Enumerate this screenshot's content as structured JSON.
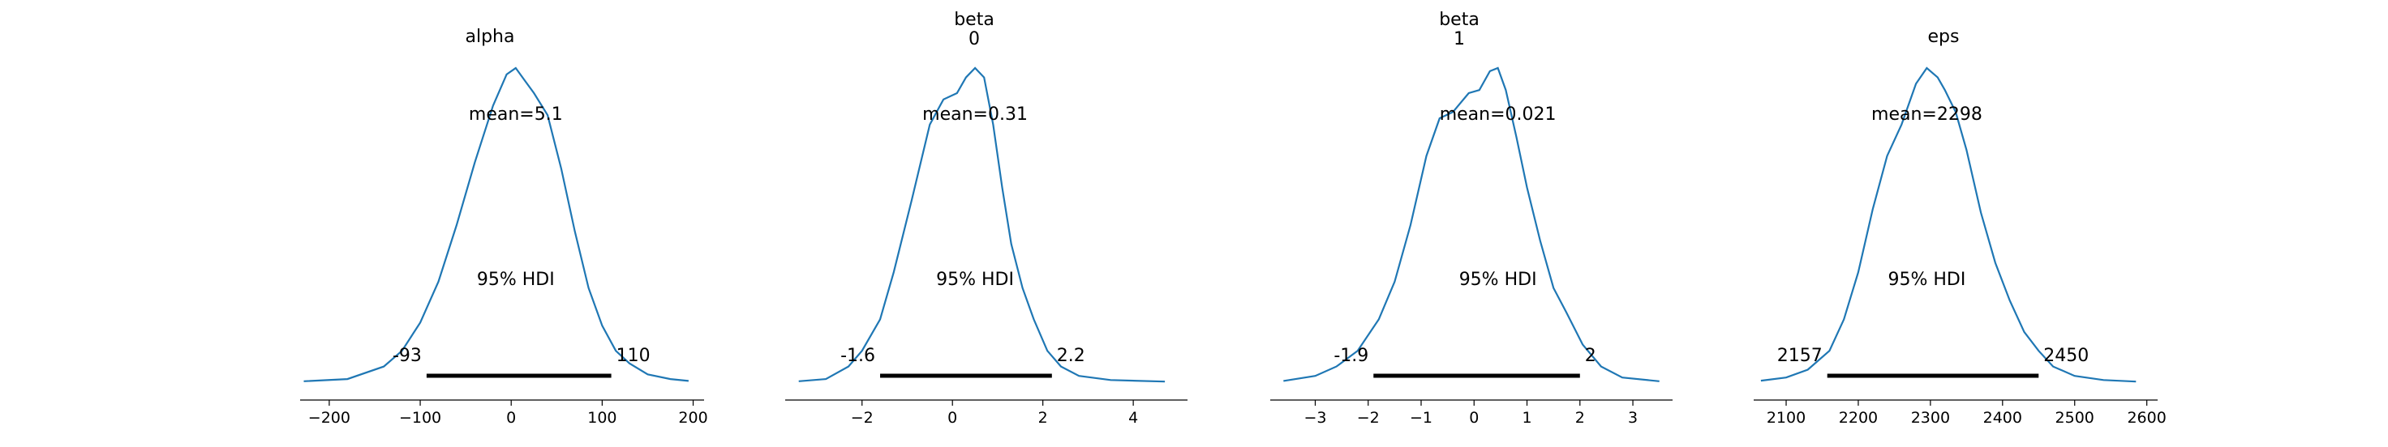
{
  "figure": {
    "line_color": "#1f77b4",
    "hdi_color": "#000000",
    "axis_color": "#000000"
  },
  "chart_data": [
    {
      "type": "line",
      "title_lines": [
        "alpha"
      ],
      "mean_label": "mean=5.1",
      "hdi_label": "95% HDI",
      "hdi_low": -93,
      "hdi_high": 110,
      "hdi_low_label": "-93",
      "hdi_high_label": "110",
      "xlim": [
        -232,
        212
      ],
      "xticks": [
        -200,
        -100,
        0,
        100,
        200
      ],
      "xtick_labels": [
        "−200",
        "−100",
        "0",
        "100",
        "200"
      ],
      "density": [
        [
          -228,
          0.003
        ],
        [
          -180,
          0.01
        ],
        [
          -140,
          0.05
        ],
        [
          -120,
          0.1
        ],
        [
          -100,
          0.19
        ],
        [
          -80,
          0.32
        ],
        [
          -60,
          0.5
        ],
        [
          -40,
          0.7
        ],
        [
          -20,
          0.88
        ],
        [
          -5,
          0.98
        ],
        [
          5,
          1.0
        ],
        [
          15,
          0.96
        ],
        [
          25,
          0.92
        ],
        [
          40,
          0.85
        ],
        [
          55,
          0.68
        ],
        [
          70,
          0.48
        ],
        [
          85,
          0.3
        ],
        [
          100,
          0.18
        ],
        [
          115,
          0.1
        ],
        [
          130,
          0.06
        ],
        [
          150,
          0.025
        ],
        [
          175,
          0.01
        ],
        [
          195,
          0.004
        ]
      ]
    },
    {
      "type": "line",
      "title_lines": [
        "beta",
        "0"
      ],
      "mean_label": "mean=0.31",
      "hdi_label": "95% HDI",
      "hdi_low": -1.6,
      "hdi_high": 2.2,
      "hdi_low_label": "-1.6",
      "hdi_high_label": "2.2",
      "xlim": [
        -3.7,
        5.2
      ],
      "xticks": [
        -2,
        0,
        2,
        4
      ],
      "xtick_labels": [
        "−2",
        "0",
        "2",
        "4"
      ],
      "density": [
        [
          -3.4,
          0.003
        ],
        [
          -2.8,
          0.01
        ],
        [
          -2.3,
          0.05
        ],
        [
          -2.0,
          0.1
        ],
        [
          -1.6,
          0.2
        ],
        [
          -1.3,
          0.35
        ],
        [
          -0.9,
          0.58
        ],
        [
          -0.5,
          0.82
        ],
        [
          -0.2,
          0.9
        ],
        [
          0.1,
          0.92
        ],
        [
          0.3,
          0.97
        ],
        [
          0.5,
          1.0
        ],
        [
          0.7,
          0.97
        ],
        [
          0.9,
          0.82
        ],
        [
          1.1,
          0.62
        ],
        [
          1.3,
          0.44
        ],
        [
          1.55,
          0.3
        ],
        [
          1.8,
          0.2
        ],
        [
          2.1,
          0.1
        ],
        [
          2.4,
          0.05
        ],
        [
          2.8,
          0.02
        ],
        [
          3.5,
          0.007
        ],
        [
          4.7,
          0.002
        ]
      ]
    },
    {
      "type": "line",
      "title_lines": [
        "beta",
        "1"
      ],
      "mean_label": "mean=0.021",
      "hdi_label": "95% HDI",
      "hdi_low": -1.9,
      "hdi_high": 2,
      "hdi_low_label": "-1.9",
      "hdi_high_label": "2",
      "xlim": [
        -3.85,
        3.75
      ],
      "xticks": [
        -3,
        -2,
        -1,
        0,
        1,
        2,
        3
      ],
      "xtick_labels": [
        "−3",
        "−2",
        "−1",
        "0",
        "1",
        "2",
        "3"
      ],
      "density": [
        [
          -3.6,
          0.004
        ],
        [
          -3.0,
          0.02
        ],
        [
          -2.6,
          0.05
        ],
        [
          -2.2,
          0.1
        ],
        [
          -1.8,
          0.2
        ],
        [
          -1.5,
          0.32
        ],
        [
          -1.2,
          0.5
        ],
        [
          -0.9,
          0.72
        ],
        [
          -0.65,
          0.84
        ],
        [
          -0.4,
          0.86
        ],
        [
          -0.1,
          0.92
        ],
        [
          0.1,
          0.93
        ],
        [
          0.3,
          0.99
        ],
        [
          0.45,
          1.0
        ],
        [
          0.6,
          0.93
        ],
        [
          0.8,
          0.78
        ],
        [
          1.0,
          0.62
        ],
        [
          1.25,
          0.45
        ],
        [
          1.5,
          0.3
        ],
        [
          1.75,
          0.22
        ],
        [
          2.05,
          0.12
        ],
        [
          2.4,
          0.05
        ],
        [
          2.8,
          0.015
        ],
        [
          3.5,
          0.003
        ]
      ]
    },
    {
      "type": "line",
      "title_lines": [
        "eps"
      ],
      "mean_label": "mean=2298",
      "hdi_label": "95% HDI",
      "hdi_low": 2157,
      "hdi_high": 2450,
      "hdi_low_label": "2157",
      "hdi_high_label": "2450",
      "xlim": [
        2055,
        2615
      ],
      "xticks": [
        2100,
        2200,
        2300,
        2400,
        2500,
        2600
      ],
      "xtick_labels": [
        "2100",
        "2200",
        "2300",
        "2400",
        "2500",
        "2600"
      ],
      "density": [
        [
          2065,
          0.005
        ],
        [
          2100,
          0.015
        ],
        [
          2130,
          0.04
        ],
        [
          2160,
          0.1
        ],
        [
          2180,
          0.2
        ],
        [
          2200,
          0.35
        ],
        [
          2220,
          0.55
        ],
        [
          2240,
          0.72
        ],
        [
          2260,
          0.82
        ],
        [
          2280,
          0.95
        ],
        [
          2295,
          1.0
        ],
        [
          2310,
          0.97
        ],
        [
          2320,
          0.93
        ],
        [
          2335,
          0.86
        ],
        [
          2350,
          0.74
        ],
        [
          2370,
          0.54
        ],
        [
          2390,
          0.38
        ],
        [
          2410,
          0.26
        ],
        [
          2430,
          0.16
        ],
        [
          2450,
          0.1
        ],
        [
          2470,
          0.05
        ],
        [
          2500,
          0.02
        ],
        [
          2540,
          0.007
        ],
        [
          2585,
          0.002
        ]
      ]
    }
  ]
}
